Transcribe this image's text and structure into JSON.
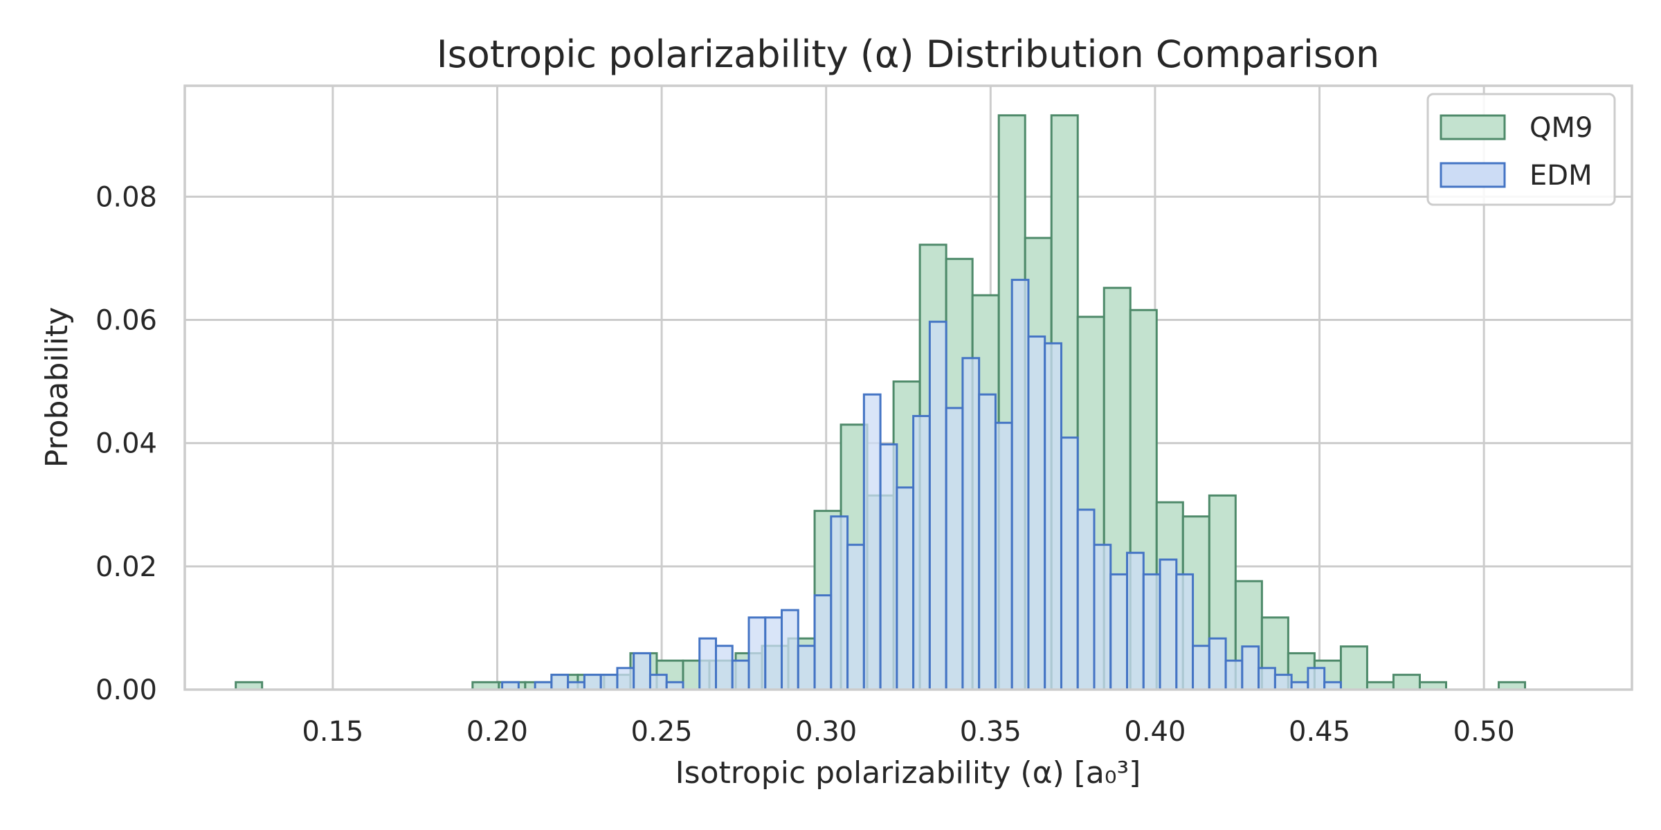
{
  "chart_data": {
    "type": "bar",
    "subtype": "histogram-overlay",
    "title": "Isotropic polarizability (α) Distribution Comparison",
    "xlabel": "Isotropic polarizability (α) [a₀³]",
    "ylabel": "Probability",
    "xlim": [
      0.105,
      0.545
    ],
    "ylim": [
      0,
      0.098
    ],
    "xticks": [
      0.15,
      0.2,
      0.25,
      0.3,
      0.35,
      0.4,
      0.45,
      0.5
    ],
    "xtick_labels": [
      "0.15",
      "0.20",
      "0.25",
      "0.30",
      "0.35",
      "0.40",
      "0.45",
      "0.50"
    ],
    "yticks": [
      0.0,
      0.02,
      0.04,
      0.06,
      0.08
    ],
    "ytick_labels": [
      "0.00",
      "0.02",
      "0.04",
      "0.06",
      "0.08"
    ],
    "grid": true,
    "legend_position": "top-right",
    "series": [
      {
        "name": "QM9",
        "fill": "#c3e2cf",
        "edge": "#4e8a6a",
        "bin_start": 0.1205,
        "bin_width": 0.008,
        "values": [
          0.0012,
          0,
          0,
          0,
          0,
          0,
          0,
          0,
          0,
          0.0012,
          0.0012,
          0.0012,
          0.0024,
          0.0024,
          0.0024,
          0.0059,
          0.0047,
          0.0047,
          0.0047,
          0.0059,
          0.0071,
          0.0083,
          0.029,
          0.043,
          0.0315,
          0.05,
          0.0722,
          0.0699,
          0.064,
          0.0932,
          0.0733,
          0.0932,
          0.0605,
          0.0652,
          0.0616,
          0.0304,
          0.0281,
          0.0315,
          0.0176,
          0.0117,
          0.0059,
          0.0047,
          0.007,
          0.0012,
          0.0024,
          0.0012,
          0,
          0,
          0.0012
        ]
      },
      {
        "name": "EDM",
        "fill": "#ccdcf5",
        "edge": "#4474c4",
        "bin_start": 0.2015,
        "bin_width": 0.005,
        "values": [
          0.0012,
          0,
          0.0012,
          0.0024,
          0.0012,
          0.0024,
          0.0024,
          0.0035,
          0.0059,
          0.0024,
          0.0012,
          0,
          0.0083,
          0.0071,
          0.0047,
          0.0117,
          0.0117,
          0.0129,
          0.0071,
          0.0153,
          0.0281,
          0.0235,
          0.0479,
          0.0398,
          0.0328,
          0.0444,
          0.0597,
          0.0457,
          0.0538,
          0.0479,
          0.0433,
          0.0665,
          0.0573,
          0.0562,
          0.0409,
          0.0292,
          0.0235,
          0.0187,
          0.0222,
          0.0187,
          0.0211,
          0.0187,
          0.0071,
          0.0083,
          0.0047,
          0.007,
          0.0035,
          0.0024,
          0.0012,
          0.0035,
          0.0012
        ]
      }
    ]
  }
}
